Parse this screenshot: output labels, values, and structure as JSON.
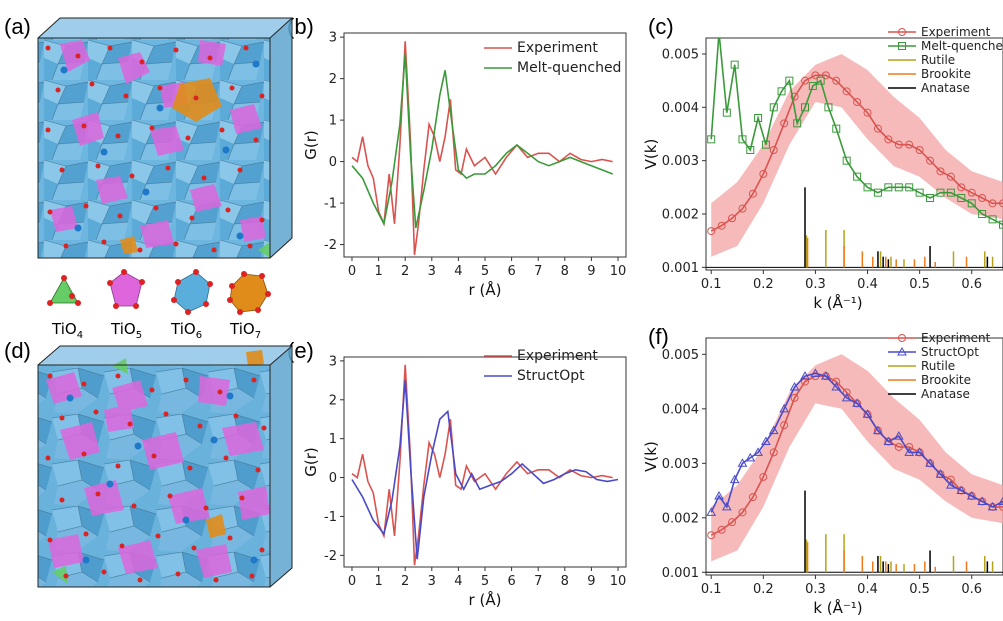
{
  "panels": {
    "a": "(a)",
    "b": "(b)",
    "c": "(c)",
    "d": "(d)",
    "e": "(e)",
    "f": "(f)"
  },
  "structure_legend": [
    "TiO4",
    "TiO5",
    "TiO6",
    "TiO7"
  ],
  "colors": {
    "experiment": "#d9534f",
    "melt": "#3a9a3a",
    "structopt": "#4a4ac8",
    "band": "#f4a3a3",
    "rutile": "#b5a21a",
    "brookite": "#f07a1c",
    "anatase": "#000000",
    "tio4": "#66cc66",
    "tio5": "#dd66dd",
    "tio6": "#5aaedc",
    "tio7": "#e08c1a",
    "oxygen": "#dd2222"
  },
  "chart_data": [
    {
      "id": "b",
      "type": "line",
      "xlabel": "r (Å)",
      "ylabel": "G(r)",
      "xlim": [
        -0.3,
        10.3
      ],
      "ylim": [
        -2.3,
        3.1
      ],
      "xticks": [
        0,
        1,
        2,
        3,
        4,
        5,
        6,
        7,
        8,
        9,
        10
      ],
      "yticks": [
        -2,
        -1,
        0,
        1,
        2,
        3
      ],
      "legend": "top-right",
      "series": [
        {
          "name": "Experiment",
          "x": [
            0.0,
            0.2,
            0.4,
            0.6,
            0.8,
            1.0,
            1.2,
            1.4,
            1.6,
            1.8,
            2.0,
            2.2,
            2.35,
            2.5,
            2.7,
            2.9,
            3.1,
            3.3,
            3.5,
            3.7,
            3.9,
            4.1,
            4.3,
            4.6,
            5.0,
            5.4,
            5.8,
            6.2,
            6.6,
            7.0,
            7.4,
            7.8,
            8.2,
            8.6,
            9.0,
            9.4,
            9.8
          ],
          "y": [
            0.1,
            0.0,
            0.6,
            -0.1,
            -0.4,
            -1.2,
            -1.5,
            -0.3,
            -1.5,
            0.4,
            2.9,
            0.5,
            -2.25,
            -1.5,
            -0.2,
            0.9,
            0.6,
            0.0,
            0.6,
            1.5,
            -0.2,
            -0.3,
            0.3,
            -0.1,
            0.1,
            -0.3,
            0.1,
            0.4,
            0.1,
            0.2,
            0.2,
            0.0,
            0.2,
            0.05,
            0.0,
            0.05,
            0.0
          ]
        },
        {
          "name": "Melt-quenched",
          "x": [
            0.0,
            0.4,
            0.8,
            1.2,
            1.5,
            1.8,
            2.0,
            2.2,
            2.4,
            2.7,
            3.0,
            3.3,
            3.5,
            3.7,
            4.0,
            4.3,
            4.6,
            5.0,
            5.4,
            5.8,
            6.2,
            6.6,
            7.0,
            7.4,
            7.8,
            8.2,
            8.6,
            9.0,
            9.4,
            9.8
          ],
          "y": [
            -0.1,
            -0.4,
            -1.0,
            -1.5,
            -0.5,
            0.9,
            2.6,
            0.2,
            -1.6,
            -0.7,
            0.3,
            1.6,
            2.2,
            1.2,
            -0.2,
            -0.4,
            -0.3,
            -0.3,
            -0.1,
            0.2,
            0.4,
            0.2,
            0.0,
            -0.1,
            0.0,
            0.1,
            0.0,
            -0.1,
            -0.2,
            -0.3
          ]
        }
      ]
    },
    {
      "id": "c",
      "type": "line",
      "xlabel": "k (Å⁻¹)",
      "ylabel": "V(k)",
      "xlim": [
        0.09,
        0.66
      ],
      "ylim": [
        0.00095,
        0.0053
      ],
      "xticks": [
        0.1,
        0.2,
        0.3,
        0.4,
        0.5,
        0.6
      ],
      "yticks": [
        0.001,
        0.002,
        0.003,
        0.004,
        0.005
      ],
      "legend": "top-right",
      "series": [
        {
          "name": "Experiment",
          "x": [
            0.1,
            0.12,
            0.14,
            0.16,
            0.18,
            0.2,
            0.22,
            0.24,
            0.26,
            0.28,
            0.3,
            0.32,
            0.34,
            0.36,
            0.38,
            0.4,
            0.42,
            0.44,
            0.46,
            0.48,
            0.5,
            0.52,
            0.54,
            0.56,
            0.58,
            0.6,
            0.62,
            0.64,
            0.66
          ],
          "y": [
            0.00168,
            0.00178,
            0.00192,
            0.0021,
            0.00238,
            0.00275,
            0.0032,
            0.0037,
            0.0042,
            0.0045,
            0.0046,
            0.0046,
            0.0045,
            0.0043,
            0.0041,
            0.0039,
            0.0036,
            0.0034,
            0.0033,
            0.0033,
            0.0032,
            0.003,
            0.0028,
            0.0027,
            0.0025,
            0.0024,
            0.0023,
            0.0022,
            0.0022
          ]
        },
        {
          "name": "Melt-quenched",
          "x": [
            0.1,
            0.115,
            0.13,
            0.145,
            0.16,
            0.175,
            0.19,
            0.205,
            0.22,
            0.235,
            0.25,
            0.265,
            0.28,
            0.295,
            0.31,
            0.325,
            0.34,
            0.36,
            0.38,
            0.4,
            0.42,
            0.44,
            0.46,
            0.48,
            0.5,
            0.52,
            0.54,
            0.56,
            0.58,
            0.6,
            0.62,
            0.64,
            0.66
          ],
          "y": [
            0.0034,
            0.0054,
            0.0039,
            0.0048,
            0.0034,
            0.0032,
            0.0038,
            0.0033,
            0.004,
            0.0043,
            0.0045,
            0.0037,
            0.004,
            0.0044,
            0.0045,
            0.004,
            0.0036,
            0.003,
            0.0027,
            0.0025,
            0.0024,
            0.0025,
            0.0025,
            0.0025,
            0.0024,
            0.0023,
            0.0024,
            0.0024,
            0.0023,
            0.0022,
            0.002,
            0.0019,
            0.0018
          ]
        }
      ],
      "band": {
        "x": [
          0.1,
          0.15,
          0.2,
          0.25,
          0.3,
          0.35,
          0.4,
          0.45,
          0.5,
          0.55,
          0.6,
          0.66
        ],
        "lower": [
          0.0012,
          0.0014,
          0.0022,
          0.0033,
          0.0041,
          0.004,
          0.0034,
          0.0029,
          0.0027,
          0.0023,
          0.002,
          0.0019
        ],
        "upper": [
          0.0022,
          0.0026,
          0.0033,
          0.0043,
          0.0048,
          0.005,
          0.0047,
          0.0042,
          0.0038,
          0.0032,
          0.0028,
          0.0026
        ]
      },
      "sticks": [
        {
          "name": "Rutile",
          "x": [
            0.283,
            0.32,
            0.355,
            0.425,
            0.445,
            0.47,
            0.565,
            0.625,
            0.64
          ],
          "h": [
            0.0006,
            0.0007,
            0.0007,
            0.0003,
            0.0002,
            0.00015,
            0.0003,
            0.0003,
            0.0002
          ]
        },
        {
          "name": "Brookite",
          "x": [
            0.285,
            0.355,
            0.39,
            0.41,
            0.435,
            0.455,
            0.49,
            0.51,
            0.53,
            0.59
          ],
          "h": [
            0.00055,
            0.0004,
            0.0003,
            0.0002,
            0.0002,
            0.00015,
            0.00015,
            0.0002,
            0.0001,
            0.0002
          ]
        },
        {
          "name": "Anatase",
          "x": [
            0.28,
            0.42,
            0.43,
            0.44,
            0.52,
            0.63
          ],
          "h": [
            0.0015,
            0.0003,
            0.0002,
            0.00015,
            0.0004,
            0.0002
          ]
        }
      ]
    },
    {
      "id": "e",
      "type": "line",
      "xlabel": "r (Å)",
      "ylabel": "G(r)",
      "xlim": [
        -0.3,
        10.3
      ],
      "ylim": [
        -2.3,
        3.1
      ],
      "xticks": [
        0,
        1,
        2,
        3,
        4,
        5,
        6,
        7,
        8,
        9,
        10
      ],
      "yticks": [
        -2,
        -1,
        0,
        1,
        2,
        3
      ],
      "legend": "top-right",
      "series": [
        {
          "name": "Experiment",
          "x": [
            0.0,
            0.2,
            0.4,
            0.6,
            0.8,
            1.0,
            1.2,
            1.4,
            1.6,
            1.8,
            2.0,
            2.2,
            2.35,
            2.5,
            2.7,
            2.9,
            3.1,
            3.3,
            3.5,
            3.7,
            3.9,
            4.1,
            4.3,
            4.6,
            5.0,
            5.4,
            5.8,
            6.2,
            6.6,
            7.0,
            7.4,
            7.8,
            8.2,
            8.6,
            9.0,
            9.4,
            9.8
          ],
          "y": [
            0.1,
            0.0,
            0.6,
            -0.1,
            -0.4,
            -1.2,
            -1.5,
            -0.3,
            -1.5,
            0.4,
            2.9,
            0.5,
            -2.25,
            -1.5,
            -0.2,
            0.9,
            0.6,
            0.0,
            0.6,
            1.5,
            -0.2,
            -0.3,
            0.3,
            -0.1,
            0.1,
            -0.3,
            0.1,
            0.4,
            0.1,
            0.2,
            0.2,
            0.0,
            0.2,
            0.05,
            0.0,
            0.05,
            0.0
          ]
        },
        {
          "name": "StructOpt",
          "x": [
            0.0,
            0.4,
            0.8,
            1.2,
            1.5,
            1.8,
            2.0,
            2.2,
            2.45,
            2.7,
            3.0,
            3.3,
            3.6,
            3.9,
            4.2,
            4.5,
            4.8,
            5.2,
            5.6,
            6.0,
            6.4,
            6.8,
            7.2,
            7.6,
            8.0,
            8.4,
            8.8,
            9.2,
            9.6,
            10.0
          ],
          "y": [
            -0.05,
            -0.5,
            -1.1,
            -1.45,
            -0.6,
            0.8,
            2.5,
            0.3,
            -2.1,
            -0.5,
            0.6,
            1.5,
            1.7,
            0.1,
            -0.3,
            0.1,
            -0.3,
            -0.2,
            -0.1,
            0.1,
            0.35,
            0.1,
            -0.15,
            -0.05,
            0.1,
            0.2,
            0.15,
            -0.05,
            -0.1,
            -0.05
          ]
        }
      ]
    },
    {
      "id": "f",
      "type": "line",
      "xlabel": "k (Å⁻¹)",
      "ylabel": "V(k)",
      "xlim": [
        0.09,
        0.66
      ],
      "ylim": [
        0.00095,
        0.0053
      ],
      "xticks": [
        0.1,
        0.2,
        0.3,
        0.4,
        0.5,
        0.6
      ],
      "yticks": [
        0.001,
        0.002,
        0.003,
        0.004,
        0.005
      ],
      "legend": "top-right",
      "series": [
        {
          "name": "Experiment",
          "x": [
            0.1,
            0.12,
            0.14,
            0.16,
            0.18,
            0.2,
            0.22,
            0.24,
            0.26,
            0.28,
            0.3,
            0.32,
            0.34,
            0.36,
            0.38,
            0.4,
            0.42,
            0.44,
            0.46,
            0.48,
            0.5,
            0.52,
            0.54,
            0.56,
            0.58,
            0.6,
            0.62,
            0.64,
            0.66
          ],
          "y": [
            0.00168,
            0.00178,
            0.00192,
            0.0021,
            0.00238,
            0.00275,
            0.0032,
            0.0037,
            0.0042,
            0.0045,
            0.0046,
            0.0046,
            0.0045,
            0.0043,
            0.0041,
            0.0039,
            0.0036,
            0.0034,
            0.0033,
            0.0033,
            0.0032,
            0.003,
            0.0028,
            0.0027,
            0.0025,
            0.0024,
            0.0023,
            0.0022,
            0.0022
          ]
        },
        {
          "name": "StructOpt",
          "x": [
            0.1,
            0.115,
            0.13,
            0.145,
            0.16,
            0.175,
            0.19,
            0.205,
            0.22,
            0.24,
            0.26,
            0.28,
            0.3,
            0.32,
            0.34,
            0.36,
            0.38,
            0.4,
            0.42,
            0.44,
            0.46,
            0.48,
            0.5,
            0.52,
            0.54,
            0.56,
            0.58,
            0.6,
            0.62,
            0.64,
            0.66
          ],
          "y": [
            0.0021,
            0.0024,
            0.0022,
            0.0027,
            0.003,
            0.0031,
            0.0032,
            0.0034,
            0.0036,
            0.004,
            0.0044,
            0.0046,
            0.00465,
            0.0046,
            0.0044,
            0.0042,
            0.0041,
            0.0039,
            0.0036,
            0.0034,
            0.0035,
            0.0032,
            0.0032,
            0.003,
            0.0028,
            0.0026,
            0.0025,
            0.0024,
            0.0023,
            0.0022,
            0.0023
          ]
        }
      ],
      "band": {
        "x": [
          0.1,
          0.15,
          0.2,
          0.25,
          0.3,
          0.35,
          0.4,
          0.45,
          0.5,
          0.55,
          0.6,
          0.66
        ],
        "lower": [
          0.0012,
          0.0014,
          0.0022,
          0.0033,
          0.0041,
          0.004,
          0.0034,
          0.0029,
          0.0027,
          0.0023,
          0.002,
          0.0019
        ],
        "upper": [
          0.0022,
          0.0026,
          0.0033,
          0.0043,
          0.0048,
          0.005,
          0.0047,
          0.0042,
          0.0038,
          0.0032,
          0.0028,
          0.0026
        ]
      },
      "sticks": [
        {
          "name": "Rutile",
          "x": [
            0.283,
            0.32,
            0.355,
            0.425,
            0.445,
            0.47,
            0.565,
            0.625,
            0.64
          ],
          "h": [
            0.0006,
            0.0007,
            0.0007,
            0.0003,
            0.0002,
            0.00015,
            0.0003,
            0.0003,
            0.0002
          ]
        },
        {
          "name": "Brookite",
          "x": [
            0.285,
            0.355,
            0.39,
            0.41,
            0.435,
            0.455,
            0.49,
            0.51,
            0.53,
            0.59
          ],
          "h": [
            0.00055,
            0.0004,
            0.0003,
            0.0002,
            0.0002,
            0.00015,
            0.00015,
            0.0002,
            0.0001,
            0.0002
          ]
        },
        {
          "name": "Anatase",
          "x": [
            0.28,
            0.42,
            0.43,
            0.44,
            0.52,
            0.63
          ],
          "h": [
            0.0015,
            0.0003,
            0.0002,
            0.00015,
            0.0004,
            0.0002
          ]
        }
      ]
    }
  ]
}
